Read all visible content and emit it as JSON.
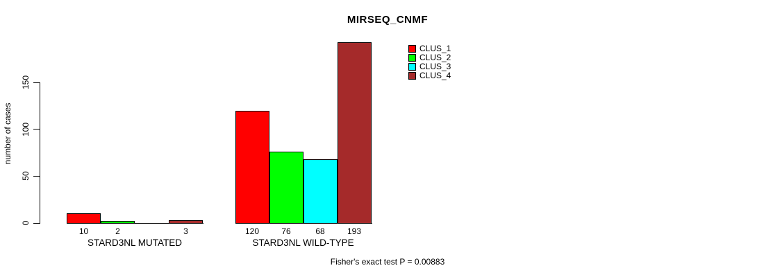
{
  "title": "MIRSEQ_CNMF",
  "ylabel": "number of cases",
  "footer": "Fisher's exact test P = 0.00883",
  "legend": {
    "position": "top-right",
    "items": [
      {
        "label": "CLUS_1",
        "color": "#FF0000"
      },
      {
        "label": "CLUS_2",
        "color": "#00FF00"
      },
      {
        "label": "CLUS_3",
        "color": "#00FFFF"
      },
      {
        "label": "CLUS_4",
        "color": "#A52A2A"
      }
    ]
  },
  "chart_data": {
    "type": "bar",
    "title": "MIRSEQ_CNMF",
    "xlabel": "",
    "ylabel": "number of cases",
    "categories": [
      "STARD3NL MUTATED",
      "STARD3NL WILD-TYPE"
    ],
    "series": [
      {
        "name": "CLUS_1",
        "color": "#FF0000",
        "values": [
          10,
          120
        ]
      },
      {
        "name": "CLUS_2",
        "color": "#00FF00",
        "values": [
          2,
          76
        ]
      },
      {
        "name": "CLUS_3",
        "color": "#00FFFF",
        "values": [
          0,
          68
        ]
      },
      {
        "name": "CLUS_4",
        "color": "#A52A2A",
        "values": [
          3,
          193
        ]
      }
    ],
    "bar_value_labels": [
      [
        "10",
        "2",
        "",
        "3"
      ],
      [
        "120",
        "76",
        "68",
        "193"
      ]
    ],
    "yticks": [
      0,
      50,
      100,
      150
    ],
    "ylim": [
      0,
      200
    ],
    "grid": false,
    "legend_position": "top-right",
    "annotation": "Fisher's exact test P = 0.00883"
  }
}
